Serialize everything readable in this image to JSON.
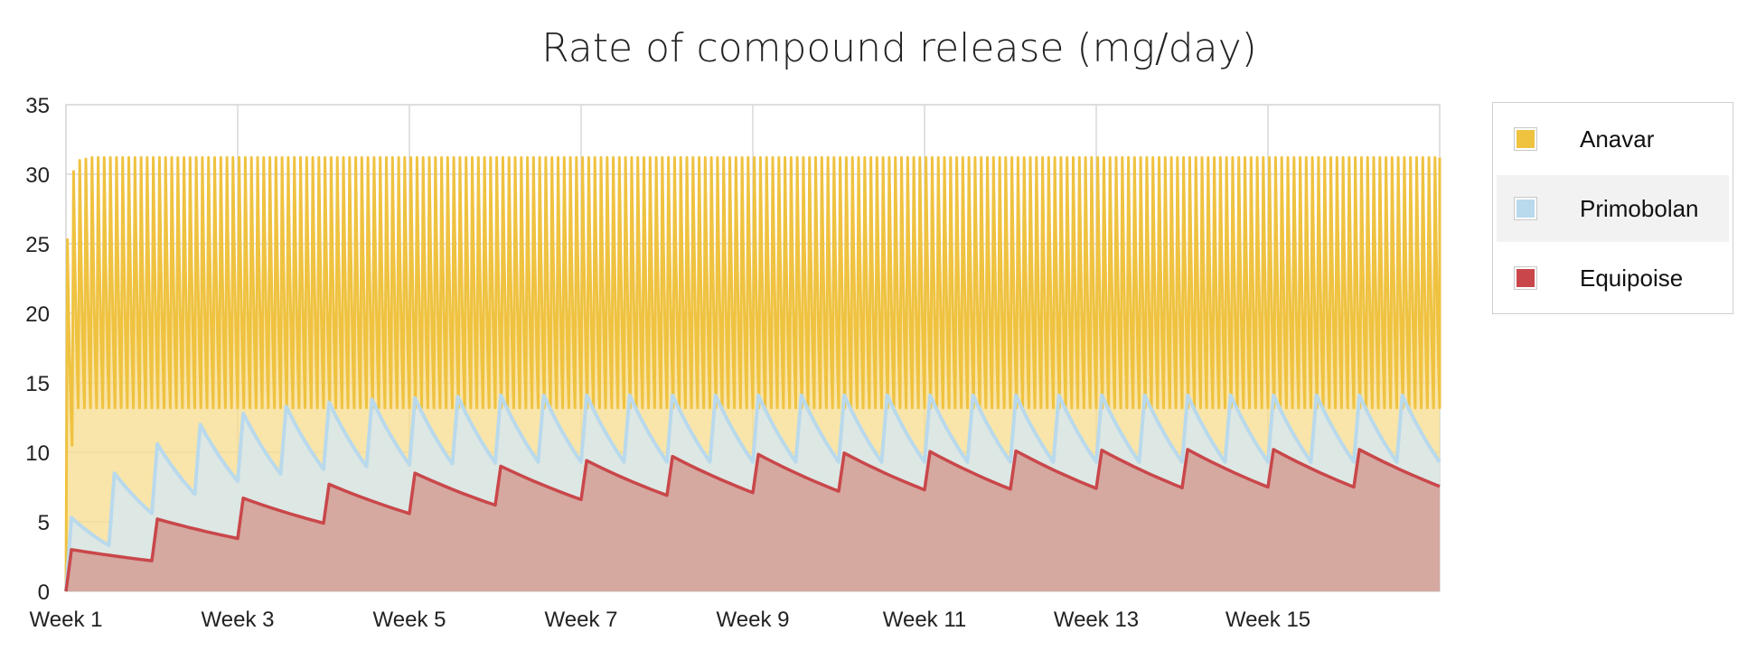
{
  "chart_data": {
    "type": "area",
    "title": "Rate of compound release (mg/day)",
    "xlabel": "",
    "ylabel": "",
    "ylim": [
      0,
      35
    ],
    "yticks": [
      0,
      5,
      10,
      15,
      20,
      25,
      30,
      35
    ],
    "xlim_days": [
      0,
      112
    ],
    "xticks": [
      {
        "label": "Week 1",
        "day": 0
      },
      {
        "label": "Week 3",
        "day": 14
      },
      {
        "label": "Week 5",
        "day": 28
      },
      {
        "label": "Week 7",
        "day": 42
      },
      {
        "label": "Week 9",
        "day": 56
      },
      {
        "label": "Week 11",
        "day": 70
      },
      {
        "label": "Week 13",
        "day": 84
      },
      {
        "label": "Week 15",
        "day": 98
      }
    ],
    "grid": true,
    "legend_position": "right",
    "series": [
      {
        "name": "Anavar",
        "color": "#efc240",
        "fill": "#f7dc8c",
        "pattern": "daily oral dosing oscillation",
        "peak_values": [
          25.3,
          30.2,
          31.0,
          31.1
        ],
        "steady_peak": 31.2,
        "steady_trough": 13.2,
        "first_trough": 10.5,
        "doses_per_day": 2
      },
      {
        "name": "Primobolan",
        "color": "#b9d9ec",
        "fill": "#d8e8ee",
        "pattern": "twice-weekly injection sawtooth",
        "peak_values": [
          5.3,
          8.5,
          10.6,
          12.0,
          12.8,
          13.3,
          13.6,
          13.8,
          13.9,
          14.0
        ],
        "steady_peak": 14.1,
        "steady_trough_ratio": 0.66,
        "injections_per_week": 2
      },
      {
        "name": "Equipoise",
        "color": "#c9474a",
        "fill": "#d4a49c",
        "pattern": "weekly injection sawtooth",
        "peak_values": [
          3.0,
          5.2,
          6.7,
          7.7,
          8.5,
          9.0,
          9.4,
          9.7,
          9.85,
          9.95,
          10.05,
          10.1,
          10.15,
          10.2,
          10.2,
          10.2
        ],
        "trough_values": [
          2.2,
          3.8,
          4.9,
          5.6,
          6.2,
          6.6,
          6.9,
          7.1,
          7.2,
          7.3,
          7.35,
          7.4,
          7.45,
          7.5,
          7.5,
          7.55
        ],
        "injections_per_week": 1
      }
    ]
  },
  "legend": {
    "items": [
      {
        "label": "Anavar",
        "color": "#efc240"
      },
      {
        "label": "Primobolan",
        "color": "#b9d9ec"
      },
      {
        "label": "Equipoise",
        "color": "#c9474a"
      }
    ]
  }
}
